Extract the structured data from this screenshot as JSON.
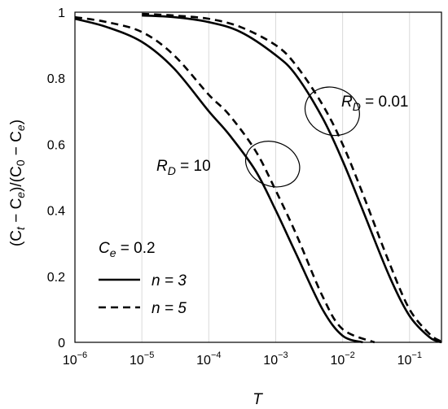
{
  "chart_data": {
    "type": "line",
    "title": "",
    "xlabel": "T",
    "ylabel": "(Cₜ − Cₑ)/(C₀ − Cₑ)",
    "ylabel_parts": {
      "open": "(C",
      "sub_t": "t",
      "minus1": " − C",
      "sub_e1": "e",
      "mid": ")/(C",
      "sub_0": "0",
      "minus2": " − C",
      "sub_e2": "e",
      "close": ")"
    },
    "x_scale": "log",
    "xlim": [
      1e-06,
      0.3
    ],
    "ylim": [
      0,
      1
    ],
    "grid": "vertical",
    "x_ticks": [
      {
        "value": 1e-06,
        "base": "10",
        "exp": "−6"
      },
      {
        "value": 1e-05,
        "base": "10",
        "exp": "−5"
      },
      {
        "value": 0.0001,
        "base": "10",
        "exp": "−4"
      },
      {
        "value": 0.001,
        "base": "10",
        "exp": "−3"
      },
      {
        "value": 0.01,
        "base": "10",
        "exp": "−2"
      },
      {
        "value": 0.1,
        "base": "10",
        "exp": "−1"
      }
    ],
    "y_ticks": [
      {
        "value": 0,
        "label": "0"
      },
      {
        "value": 0.2,
        "label": "0.2"
      },
      {
        "value": 0.4,
        "label": "0.4"
      },
      {
        "value": 0.6,
        "label": "0.6"
      },
      {
        "value": 0.8,
        "label": "0.8"
      },
      {
        "value": 1,
        "label": "1"
      }
    ],
    "legend": {
      "placement": "bottom-left",
      "header": {
        "main": "C",
        "sub": "e",
        "rest": " = 0.2"
      },
      "items": [
        {
          "label": "n = 3",
          "style": "solid"
        },
        {
          "label": "n = 5",
          "style": "dashed"
        }
      ]
    },
    "annotations": [
      {
        "id": "rd10",
        "main": "R",
        "sub": "D",
        "rest": " = 10"
      },
      {
        "id": "rd001",
        "main": "R",
        "sub": "D",
        "rest": " = 0.01"
      }
    ],
    "series": [
      {
        "group": "RD=10",
        "n": 3,
        "style": "solid",
        "x": [
          1e-06,
          3e-06,
          1e-05,
          3e-05,
          0.0001,
          0.0002,
          0.0005,
          0.001,
          0.002,
          0.005,
          0.01,
          0.02
        ],
        "y": [
          0.98,
          0.955,
          0.91,
          0.83,
          0.7,
          0.63,
          0.52,
          0.4,
          0.27,
          0.1,
          0.02,
          0
        ]
      },
      {
        "group": "RD=10",
        "n": 5,
        "style": "dashed",
        "x": [
          1e-06,
          3e-06,
          1e-05,
          3e-05,
          0.0001,
          0.0002,
          0.0005,
          0.001,
          0.002,
          0.005,
          0.01,
          0.03
        ],
        "y": [
          0.985,
          0.97,
          0.94,
          0.87,
          0.75,
          0.69,
          0.58,
          0.46,
          0.33,
          0.14,
          0.04,
          0
        ]
      },
      {
        "group": "RD=0.01",
        "n": 3,
        "style": "solid",
        "x": [
          1e-05,
          3e-05,
          0.0001,
          0.0003,
          0.001,
          0.002,
          0.005,
          0.01,
          0.02,
          0.05,
          0.1,
          0.2,
          0.3
        ],
        "y": [
          0.99,
          0.985,
          0.97,
          0.94,
          0.87,
          0.81,
          0.68,
          0.55,
          0.4,
          0.2,
          0.08,
          0.015,
          0
        ]
      },
      {
        "group": "RD=0.01",
        "n": 5,
        "style": "dashed",
        "x": [
          1e-05,
          3e-05,
          0.0001,
          0.0003,
          0.001,
          0.002,
          0.005,
          0.01,
          0.02,
          0.05,
          0.1,
          0.2,
          0.3
        ],
        "y": [
          0.995,
          0.99,
          0.98,
          0.955,
          0.9,
          0.84,
          0.72,
          0.6,
          0.45,
          0.24,
          0.1,
          0.025,
          0.002
        ]
      }
    ]
  }
}
